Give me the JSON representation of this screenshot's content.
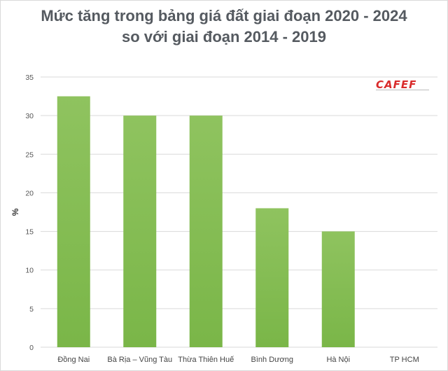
{
  "title_line1": "Mức tăng trong bảng giá đất giai đoạn 2020 - 2024",
  "title_line2": "so với giai đoạn 2014 - 2019",
  "logo_text": "CAFEF",
  "colors": {
    "bar": "#7ab648",
    "bar_top": "#8fc35f",
    "grid": "#d9d9d9",
    "title": "#555a60",
    "logo": "#d92b2b"
  },
  "chart_data": {
    "type": "bar",
    "title": "Mức tăng trong bảng giá đất giai đoạn 2020 - 2024 so với giai đoạn 2014 - 2019",
    "categories": [
      "Đồng Nai",
      "Bà Rịa – Vũng Tàu",
      "Thừa Thiên Huế",
      "Bình Dương",
      "Hà Nội",
      "TP HCM"
    ],
    "values": [
      32.5,
      30,
      30,
      18,
      15,
      0
    ],
    "ylabel": "%",
    "xlabel": "",
    "ylim": [
      0,
      35
    ],
    "yticks": [
      0,
      5,
      10,
      15,
      20,
      25,
      30,
      35
    ],
    "grid": true,
    "legend": "none"
  }
}
